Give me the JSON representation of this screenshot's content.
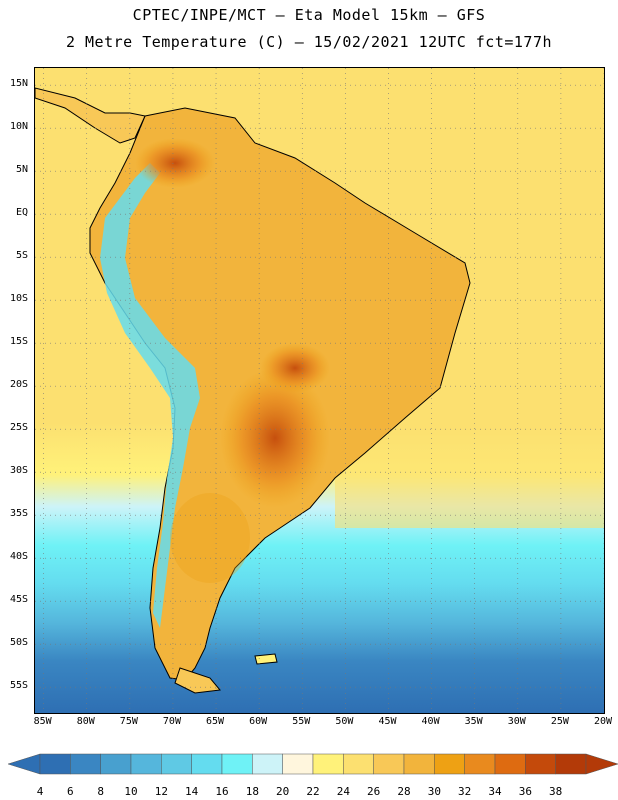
{
  "title": {
    "line1": "CPTEC/INPE/MCT –  Eta Model 15km – GFS",
    "line2": "2 Metre Temperature (C) – 15/02/2021 12UTC fct=177h"
  },
  "map": {
    "region": "South America",
    "variable": "2 Metre Temperature",
    "units": "C",
    "lon_range": [
      -86,
      -20
    ],
    "lat_range": [
      -58,
      17
    ],
    "lat_labels": [
      {
        "value": 15,
        "text": "15N"
      },
      {
        "value": 10,
        "text": "10N"
      },
      {
        "value": 5,
        "text": "5N"
      },
      {
        "value": 0,
        "text": "EQ"
      },
      {
        "value": -5,
        "text": "5S"
      },
      {
        "value": -10,
        "text": "10S"
      },
      {
        "value": -15,
        "text": "15S"
      },
      {
        "value": -20,
        "text": "20S"
      },
      {
        "value": -25,
        "text": "25S"
      },
      {
        "value": -30,
        "text": "30S"
      },
      {
        "value": -35,
        "text": "35S"
      },
      {
        "value": -40,
        "text": "40S"
      },
      {
        "value": -45,
        "text": "45S"
      },
      {
        "value": -50,
        "text": "50S"
      },
      {
        "value": -55,
        "text": "55S"
      }
    ],
    "lon_labels": [
      {
        "value": -85,
        "text": "85W"
      },
      {
        "value": -80,
        "text": "80W"
      },
      {
        "value": -75,
        "text": "75W"
      },
      {
        "value": -70,
        "text": "70W"
      },
      {
        "value": -65,
        "text": "65W"
      },
      {
        "value": -60,
        "text": "60W"
      },
      {
        "value": -55,
        "text": "55W"
      },
      {
        "value": -50,
        "text": "50W"
      },
      {
        "value": -45,
        "text": "45W"
      },
      {
        "value": -40,
        "text": "40W"
      },
      {
        "value": -35,
        "text": "35W"
      },
      {
        "value": -30,
        "text": "30W"
      },
      {
        "value": -25,
        "text": "25W"
      },
      {
        "value": -20,
        "text": "20W"
      }
    ]
  },
  "colorbar": {
    "labels": [
      "4",
      "6",
      "8",
      "10",
      "12",
      "14",
      "16",
      "18",
      "20",
      "22",
      "24",
      "26",
      "28",
      "30",
      "32",
      "34",
      "36",
      "38"
    ],
    "colors": [
      "#2e6fb3",
      "#3a86c2",
      "#48a0cf",
      "#55b6dc",
      "#5fc9e4",
      "#64dcef",
      "#6ff2f6",
      "#cdf3f8",
      "#fff6dd",
      "#fff27a",
      "#fce070",
      "#f8c857",
      "#f2b43c",
      "#eea114",
      "#e98a1e",
      "#de6b11",
      "#c44a0b",
      "#b33a08"
    ],
    "low_color": "#2e6fb3",
    "high_color": "#b33a08"
  }
}
